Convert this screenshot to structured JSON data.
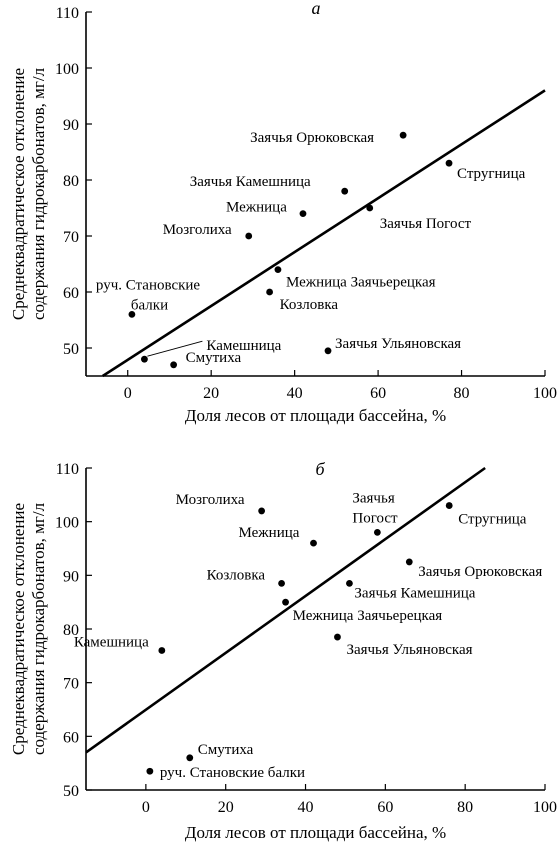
{
  "chart_data": [
    {
      "type": "scatter",
      "panel_letter": "а",
      "xlabel": "Доля лесов от площади бассейна, %",
      "ylabel_lines": [
        "Среднеквадратическое отклонение",
        "содержания гидрокарбонатов, мг/л"
      ],
      "xlim": [
        -10,
        100
      ],
      "ylim": [
        45,
        110
      ],
      "xticks": [
        0,
        20,
        40,
        60,
        80,
        100
      ],
      "yticks": [
        50,
        60,
        70,
        80,
        90,
        100,
        110
      ],
      "grid": false,
      "points": [
        {
          "name": "Заячья Орюковская",
          "x": 66,
          "y": 88
        },
        {
          "name": "Стругница",
          "x": 77,
          "y": 83
        },
        {
          "name": "Заячья Камешница",
          "x": 52,
          "y": 78
        },
        {
          "name": "Заячья Погост",
          "x": 58,
          "y": 75
        },
        {
          "name": "Межница",
          "x": 42,
          "y": 74
        },
        {
          "name": "Мозголиха",
          "x": 29,
          "y": 70
        },
        {
          "name": "Межница Заячьерецкая",
          "x": 36,
          "y": 64
        },
        {
          "name": "Козловка",
          "x": 34,
          "y": 60
        },
        {
          "name": "руч. Становские балки",
          "name_lines": [
            "руч. Становские",
            "балки"
          ],
          "x": 1,
          "y": 56
        },
        {
          "name": "Камешница",
          "x": 4,
          "y": 48
        },
        {
          "name": "Смутиха",
          "x": 11,
          "y": 47
        },
        {
          "name": "Заячья Ульяновская",
          "x": 48,
          "y": 49.5
        }
      ],
      "trendline": {
        "x": [
          -6,
          100
        ],
        "y": [
          45,
          96
        ]
      }
    },
    {
      "type": "scatter",
      "panel_letter": "б",
      "xlabel": "Доля лесов от площади бассейна, %",
      "ylabel_lines": [
        "Среднеквадратическое отклонение",
        "содержания гидрокарбонатов, мг/л"
      ],
      "xlim": [
        -15,
        100
      ],
      "ylim": [
        50,
        110
      ],
      "xticks": [
        0,
        20,
        40,
        60,
        80,
        100
      ],
      "yticks": [
        50,
        60,
        70,
        80,
        90,
        100,
        110
      ],
      "grid": false,
      "points": [
        {
          "name": "Мозголиха",
          "x": 29,
          "y": 102
        },
        {
          "name": "Межница",
          "x": 42,
          "y": 96
        },
        {
          "name": "Заячья Погост",
          "name_lines": [
            "Заячья",
            "Погост"
          ],
          "x": 58,
          "y": 98
        },
        {
          "name": "Стругница",
          "x": 76,
          "y": 103
        },
        {
          "name": "Козловка",
          "x": 34,
          "y": 88.5
        },
        {
          "name": "Заячья Камешница",
          "x": 51,
          "y": 88.5
        },
        {
          "name": "Заячья Орюковская",
          "x": 66,
          "y": 92.5
        },
        {
          "name": "Межница Заячьерецкая",
          "x": 35,
          "y": 85
        },
        {
          "name": "Заячья Ульяновская",
          "x": 48,
          "y": 78.5
        },
        {
          "name": "Камешница",
          "x": 4,
          "y": 76
        },
        {
          "name": "Смутиха",
          "x": 11,
          "y": 56
        },
        {
          "name": "руч. Становские балки",
          "x": 1,
          "y": 53.5
        }
      ],
      "trendline": {
        "x": [
          -15,
          85
        ],
        "y": [
          57,
          110
        ]
      }
    }
  ]
}
